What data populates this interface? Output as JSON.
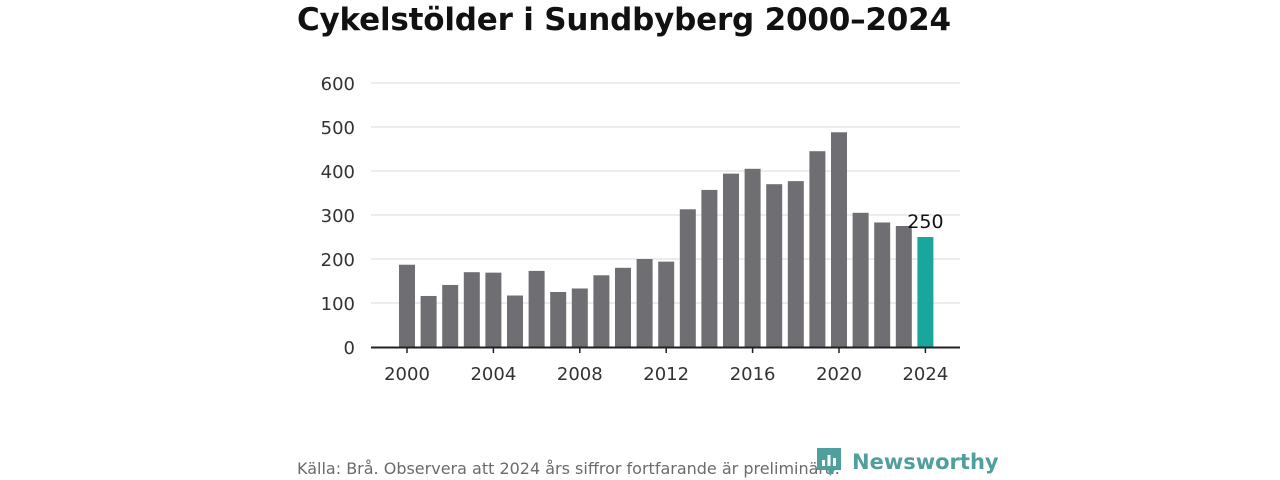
{
  "chart_data": {
    "type": "bar",
    "title": "Cykelstölder i Sundbyberg 2000–2024",
    "x": [
      2000,
      2001,
      2002,
      2003,
      2004,
      2005,
      2006,
      2007,
      2008,
      2009,
      2010,
      2011,
      2012,
      2013,
      2014,
      2015,
      2016,
      2017,
      2018,
      2019,
      2020,
      2021,
      2022,
      2023,
      2024
    ],
    "values": [
      187,
      116,
      141,
      170,
      169,
      117,
      173,
      125,
      133,
      163,
      180,
      200,
      194,
      313,
      357,
      394,
      405,
      370,
      377,
      445,
      488,
      305,
      283,
      275,
      250
    ],
    "x_ticks": [
      "2000",
      "2004",
      "2008",
      "2012",
      "2016",
      "2020",
      "2024"
    ],
    "y_ticks": [
      "0",
      "100",
      "200",
      "300",
      "400",
      "500",
      "600"
    ],
    "ylim": [
      0,
      600
    ],
    "highlight": {
      "category": "2024",
      "label": "250"
    },
    "colors": {
      "bar": "#6f6e73",
      "highlight": "#19a79d",
      "grid": "#d9d9d9",
      "axis": "#222222"
    },
    "grid": true,
    "legend": "none"
  },
  "footer": {
    "source": "Källa: Brå. Observera att 2024 års siffror fortfarande är preliminära.",
    "brand": "Newsworthy",
    "brand_icon": "newsworthy-logo-icon",
    "brand_color": "#4fa09c"
  }
}
